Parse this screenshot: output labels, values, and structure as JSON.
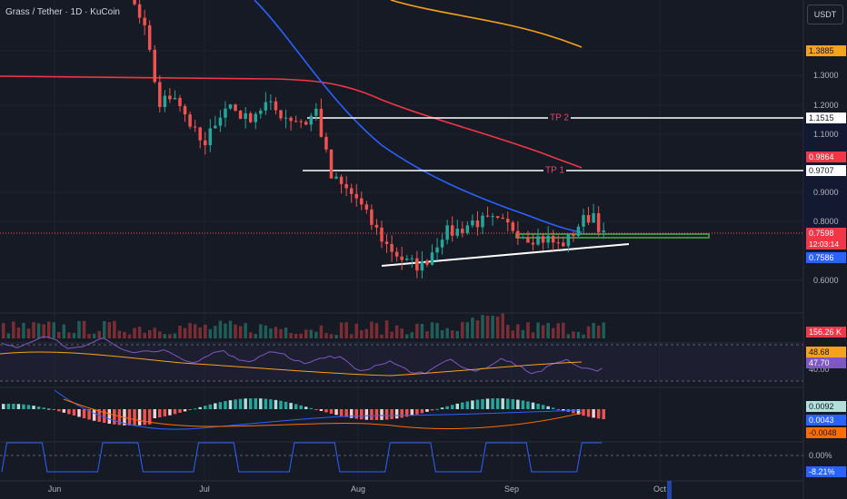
{
  "header": {
    "symbol_label": "Grass / Tether · 1D · KuCoin",
    "currency_button": "USDT"
  },
  "price_axis": {
    "ticks": [
      "1.3000",
      "1.2000",
      "1.1000",
      "0.9000",
      "0.8000",
      "0.6000"
    ]
  },
  "badges": {
    "ma_long": "1.3885",
    "tp2": "1.1515",
    "ma_mid": "0.9864",
    "tp1": "0.9707",
    "last_price": "0.7598",
    "countdown": "12:03:14",
    "ma_fast": "0.7586",
    "volume": "156.26 K",
    "rsi_ma": "48.68",
    "rsi": "47.70",
    "rsi_level": "40.00",
    "macd_hist": "0.0092",
    "macd_line": "0.0043",
    "macd_signal": "-0.0048",
    "osc_zero": "0.00%",
    "osc_value": "-8.21%"
  },
  "annotations": {
    "tp2_label": "TP 2",
    "tp1_label": "TP 1"
  },
  "time_axis": {
    "labels": [
      "Jun",
      "Jul",
      "Aug",
      "Sep",
      "Oct"
    ]
  },
  "colors": {
    "background": "#161a25",
    "up": "#26a69a",
    "down": "#ef5350",
    "ma_long": "#f7a21b",
    "ma_mid": "#f23645",
    "ma_fast": "#2962ff",
    "target_line": "#ffffff",
    "zone": "#4caf50",
    "rsi": "#7e57c2",
    "tp_text": "#ef4367"
  },
  "chart_data": {
    "type": "candlestick",
    "pair": "GRASS/USDT",
    "timeframe": "1D",
    "exchange": "KuCoin",
    "last_price": 0.7598,
    "moving_averages": [
      {
        "color": "#f7a21b",
        "current": 1.3885
      },
      {
        "color": "#f23645",
        "current": 0.9864
      },
      {
        "color": "#2962ff",
        "current": 0.7586
      }
    ],
    "horizontal_levels": [
      {
        "label": "TP 2",
        "value": 1.1515
      },
      {
        "label": "TP 1",
        "value": 0.9707
      }
    ],
    "support_zone": [
      0.757,
      0.768
    ],
    "rising_trendline": {
      "from_value": 0.648,
      "to_value": 0.72
    },
    "price_range_shown": [
      0.55,
      1.55
    ],
    "volume_last": "156.26 K",
    "rsi": {
      "value": 47.7,
      "ma": 48.68,
      "levels": [
        40.0
      ]
    },
    "macd": {
      "histogram": 0.0092,
      "macd": 0.0043,
      "signal": -0.0048
    },
    "oscillator_percent": -8.21,
    "month_labels": [
      "Jun",
      "Jul",
      "Aug",
      "Sep",
      "Oct"
    ]
  }
}
